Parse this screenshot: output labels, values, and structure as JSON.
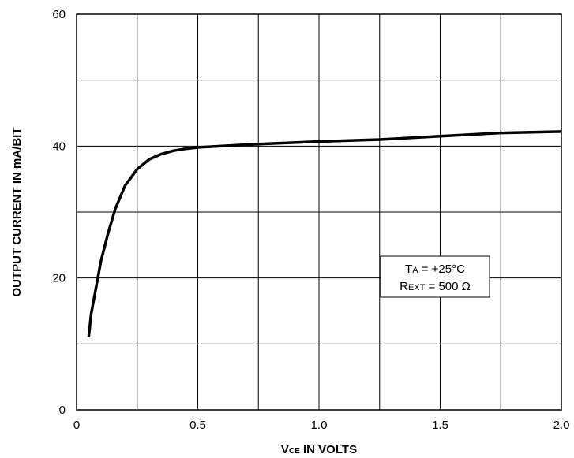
{
  "chart_data": {
    "type": "line",
    "xlabel": {
      "main": "V",
      "sub": "CE",
      "rest": " IN VOLTS"
    },
    "ylabel": "OUTPUT CURRENT IN mA/BIT",
    "xlim": [
      0,
      2.0
    ],
    "ylim": [
      0,
      60
    ],
    "x_ticks": [
      {
        "value": 0,
        "label": "0"
      },
      {
        "value": 0.5,
        "label": "0.5"
      },
      {
        "value": 1.0,
        "label": "1.0"
      },
      {
        "value": 1.5,
        "label": "1.5"
      },
      {
        "value": 2.0,
        "label": "2.0"
      }
    ],
    "y_ticks": [
      {
        "value": 0,
        "label": "0"
      },
      {
        "value": 20,
        "label": "20"
      },
      {
        "value": 40,
        "label": "40"
      },
      {
        "value": 60,
        "label": "60"
      }
    ],
    "x_grid": [
      0.25,
      0.5,
      0.75,
      1.0,
      1.25,
      1.5,
      1.75
    ],
    "y_grid": [
      10,
      20,
      30,
      40,
      50
    ],
    "grid": true,
    "line_color": "#000000",
    "series": [
      {
        "x": [
          0.05,
          0.06,
          0.08,
          0.1,
          0.13,
          0.16,
          0.2,
          0.25,
          0.3,
          0.35,
          0.4,
          0.45,
          0.5,
          0.6,
          0.75,
          1.0,
          1.25,
          1.5,
          1.75,
          2.0
        ],
        "y": [
          11,
          14.5,
          18.5,
          22.5,
          26.8,
          30.5,
          34.0,
          36.5,
          38.0,
          38.8,
          39.3,
          39.6,
          39.8,
          40.0,
          40.3,
          40.7,
          41.0,
          41.5,
          42.0,
          42.2
        ]
      }
    ],
    "annotation": {
      "line1": {
        "main": "T",
        "sub": "A",
        "rest": " = +25°C"
      },
      "line2": {
        "main": "R",
        "sub": "EXT",
        "rest": " = 500 Ω"
      }
    }
  }
}
